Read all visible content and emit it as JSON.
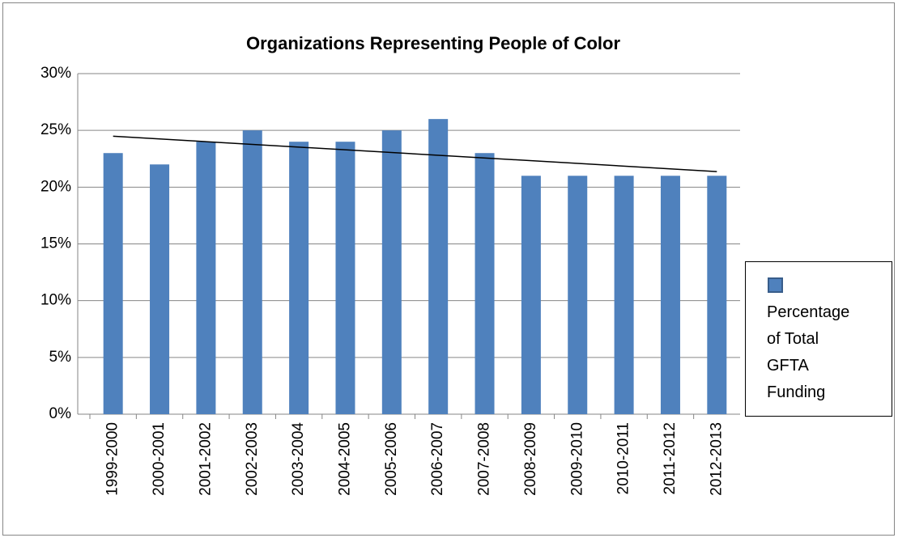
{
  "chart_data": {
    "type": "bar",
    "title": "Organizations Representing People of Color",
    "categories": [
      "1999-2000",
      "2000-2001",
      "2001-2002",
      "2002-2003",
      "2003-2004",
      "2004-2005",
      "2005-2006",
      "2006-2007",
      "2007-2008",
      "2008-2009",
      "2009-2010",
      "2010-2011",
      "2011-2012",
      "2012-2013"
    ],
    "series": [
      {
        "name": "Percentage of Total GFTA Funding",
        "color": "#4f81bd",
        "values": [
          23,
          22,
          24,
          25,
          24,
          24,
          25,
          26,
          23,
          21,
          21,
          21,
          21,
          21
        ]
      }
    ],
    "ylim": [
      0,
      30
    ],
    "yticks": [
      {
        "value": 0,
        "label": "0%"
      },
      {
        "value": 5,
        "label": "5%"
      },
      {
        "value": 10,
        "label": "10%"
      },
      {
        "value": 15,
        "label": "15%"
      },
      {
        "value": 20,
        "label": "20%"
      },
      {
        "value": 25,
        "label": "25%"
      },
      {
        "value": 30,
        "label": "30%"
      }
    ],
    "grid": true,
    "trendline": "linear",
    "legend": "right"
  }
}
